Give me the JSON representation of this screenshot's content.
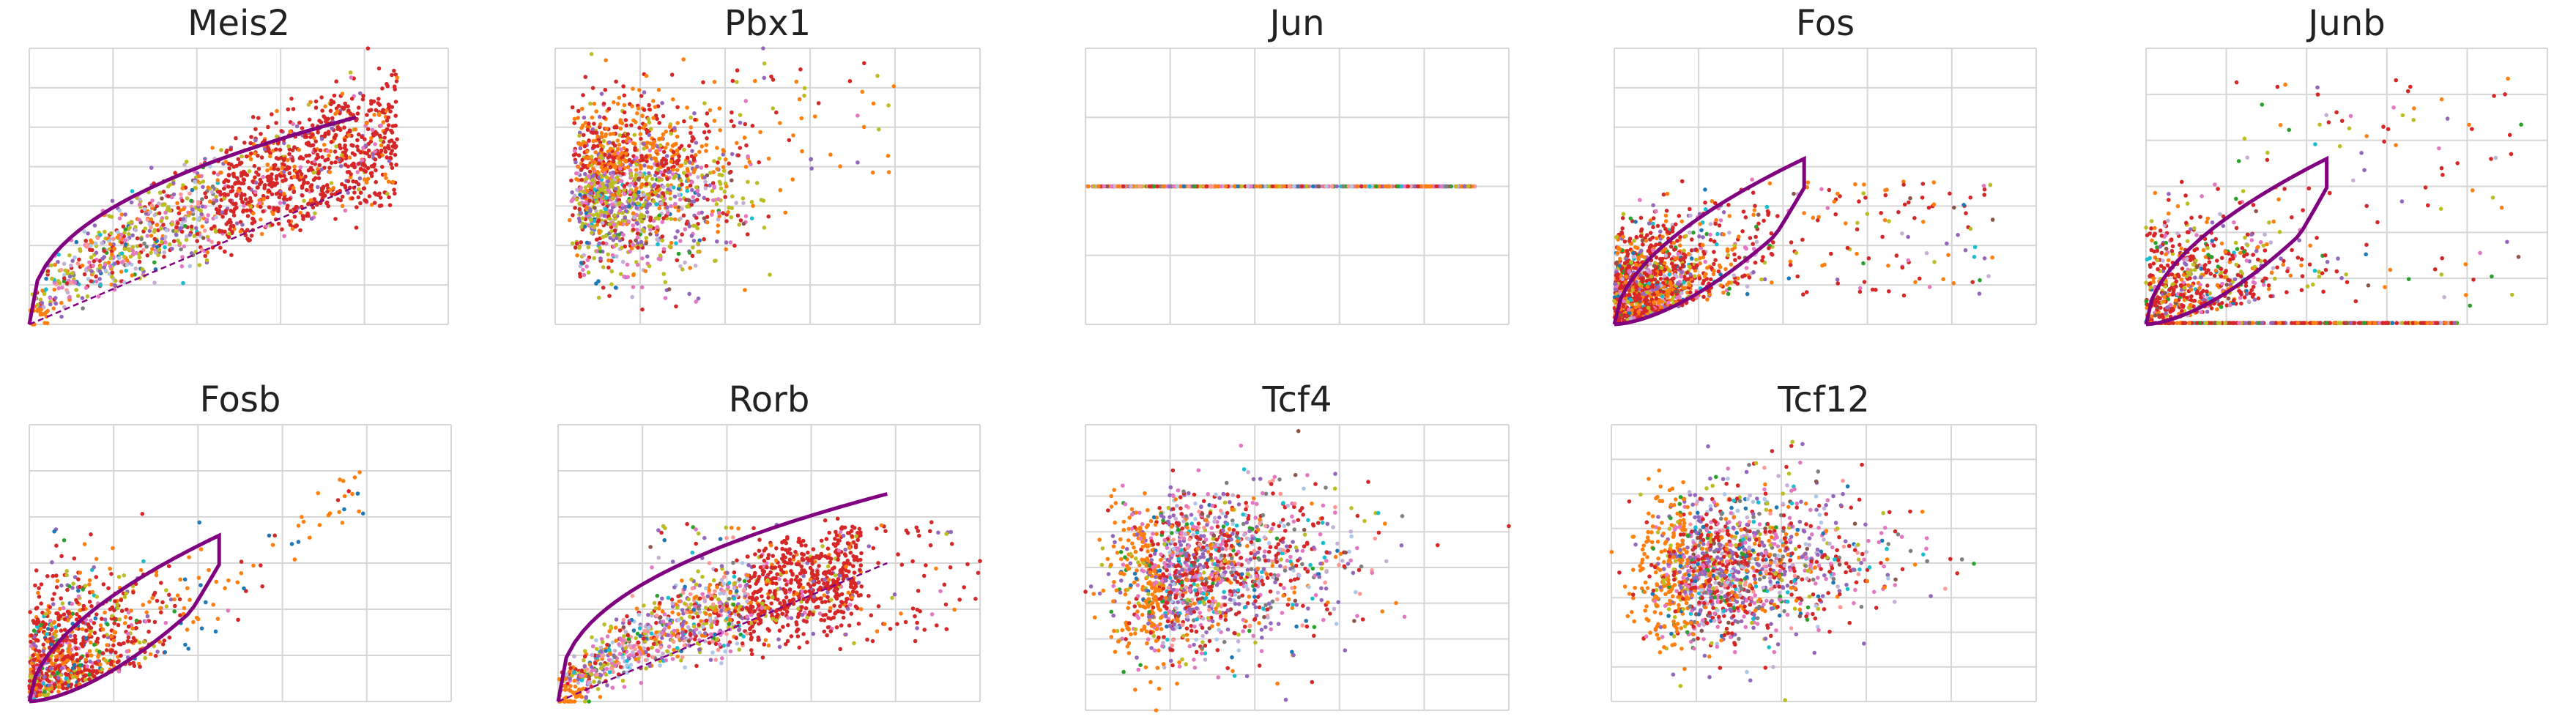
{
  "colors": {
    "curve": "#800080",
    "grid": "#d6d6d6",
    "palette": [
      "#d62728",
      "#ff7f0e",
      "#bcbd22",
      "#9467bd",
      "#e377c2",
      "#1f77b4",
      "#2ca02c",
      "#17becf",
      "#8c564b",
      "#c5b0d5",
      "#ff9896",
      "#aec7e8",
      "#7f7f7f",
      "#b01010",
      "#e8a000"
    ]
  },
  "chart_data": [
    {
      "type": "scatter",
      "title": "Meis2",
      "gene": "Meis2",
      "pattern": "steady",
      "fit": "full",
      "n": 1500,
      "xlim": [
        0,
        5
      ],
      "ylim": [
        0,
        7
      ]
    },
    {
      "type": "scatter",
      "title": "Pbx1",
      "gene": "Pbx1",
      "pattern": "blob_high",
      "fit": "none",
      "n": 1500,
      "xlim": [
        0,
        4.5
      ],
      "ylim": [
        0,
        7
      ]
    },
    {
      "type": "scatter",
      "title": "Jun",
      "gene": "Jun",
      "pattern": "flat",
      "fit": "none",
      "n": 600,
      "xlim": [
        0,
        4
      ],
      "ylim": [
        -0.3,
        0.3
      ]
    },
    {
      "type": "scatter",
      "title": "Fos",
      "gene": "Fos",
      "pattern": "low_spread",
      "fit": "loop",
      "n": 1300,
      "xlim": [
        0,
        4
      ],
      "ylim": [
        0,
        7
      ]
    },
    {
      "type": "scatter",
      "title": "Junb",
      "gene": "Junb",
      "pattern": "sparse_with_zero_row",
      "fit": "loop",
      "n": 1000,
      "xlim": [
        0,
        4
      ],
      "ylim": [
        0,
        7
      ]
    },
    {
      "type": "scatter",
      "title": "Fosb",
      "gene": "Fosb",
      "pattern": "diagonal_sparse",
      "fit": "loop",
      "n": 900,
      "xlim": [
        0,
        6
      ],
      "ylim": [
        0,
        6
      ]
    },
    {
      "type": "scatter",
      "title": "Rorb",
      "gene": "Rorb",
      "pattern": "steady_wide",
      "fit": "full",
      "n": 1500,
      "xlim": [
        0,
        6
      ],
      "ylim": [
        0,
        6
      ]
    },
    {
      "type": "scatter",
      "title": "Tcf4",
      "gene": "Tcf4",
      "pattern": "blob_mid",
      "fit": "none",
      "n": 1500,
      "xlim": [
        0,
        5
      ],
      "ylim": [
        0,
        8
      ]
    },
    {
      "type": "scatter",
      "title": "Tcf12",
      "gene": "Tcf12",
      "pattern": "blob_mid",
      "fit": "none",
      "n": 1500,
      "xlim": [
        0,
        5
      ],
      "ylim": [
        0,
        8
      ]
    }
  ]
}
